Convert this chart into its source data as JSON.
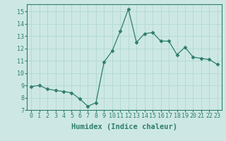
{
  "x": [
    0,
    1,
    2,
    3,
    4,
    5,
    6,
    7,
    8,
    9,
    10,
    11,
    12,
    13,
    14,
    15,
    16,
    17,
    18,
    19,
    20,
    21,
    22,
    23
  ],
  "y": [
    8.9,
    9.0,
    8.7,
    8.6,
    8.5,
    8.4,
    7.9,
    7.3,
    7.6,
    10.9,
    11.8,
    13.4,
    15.2,
    12.5,
    13.2,
    13.3,
    12.6,
    12.6,
    11.5,
    12.1,
    11.3,
    11.2,
    11.1,
    10.7
  ],
  "line_color": "#2e7d6e",
  "marker": "D",
  "marker_size": 2.5,
  "bg_color": "#cde8e4",
  "grid_color": "#b0d8d2",
  "xlabel": "Humidex (Indice chaleur)",
  "xlim": [
    -0.5,
    23.5
  ],
  "ylim": [
    7,
    15.6
  ],
  "yticks": [
    7,
    8,
    9,
    10,
    11,
    12,
    13,
    14,
    15
  ],
  "xticks": [
    0,
    1,
    2,
    3,
    4,
    5,
    6,
    7,
    8,
    9,
    10,
    11,
    12,
    13,
    14,
    15,
    16,
    17,
    18,
    19,
    20,
    21,
    22,
    23
  ],
  "font_color": "#2e7d6e",
  "tick_fontsize": 6,
  "label_fontsize": 7.5
}
